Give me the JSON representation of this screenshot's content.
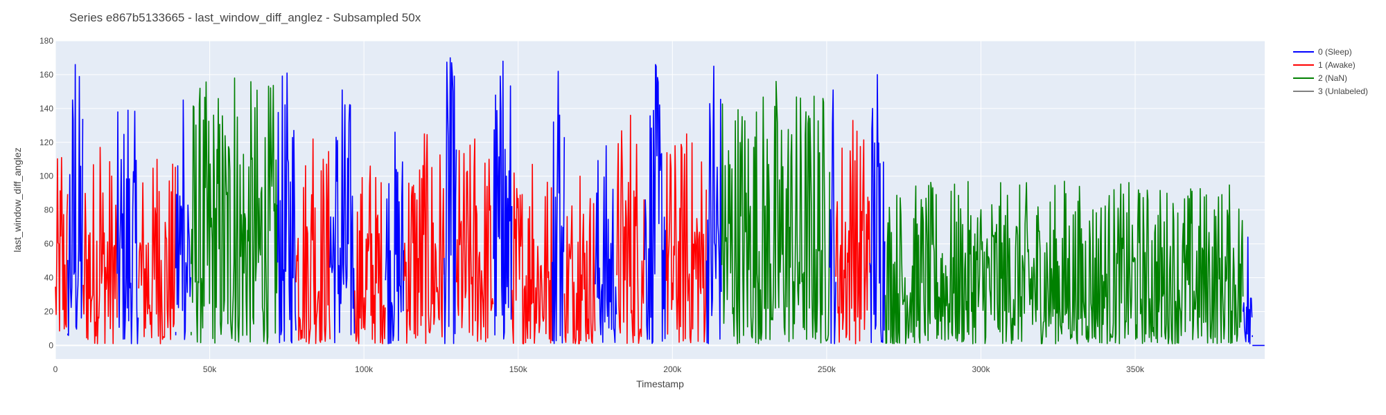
{
  "chart_data": {
    "type": "line",
    "title": "Series e867b5133665 - last_window_diff_anglez - Subsampled 50x",
    "xlabel": "Timestamp",
    "ylabel": "last_window_diff_anglez",
    "xlim": [
      0,
      392000
    ],
    "ylim": [
      -8,
      180
    ],
    "x_ticks": [
      0,
      50000,
      100000,
      150000,
      200000,
      250000,
      300000,
      350000
    ],
    "x_tick_labels": [
      "0",
      "50k",
      "100k",
      "150k",
      "200k",
      "250k",
      "300k",
      "350k"
    ],
    "y_ticks": [
      0,
      20,
      40,
      60,
      80,
      100,
      120,
      140,
      160,
      180
    ],
    "y_tick_labels": [
      "0",
      "20",
      "40",
      "60",
      "80",
      "100",
      "120",
      "140",
      "160",
      "180"
    ],
    "grid": true,
    "legend_position": "top-right",
    "series": [
      {
        "name": "0 (Sleep)",
        "color": "#0000ff"
      },
      {
        "name": "1 (Awake)",
        "color": "#ff0000"
      },
      {
        "name": "2 (NaN)",
        "color": "#008000"
      },
      {
        "name": "3 (Unlabeled)",
        "color": "#808080"
      }
    ],
    "segments": [
      {
        "series": 1,
        "x0": 0,
        "x1": 4000,
        "min": 2,
        "max": 111
      },
      {
        "series": 0,
        "x0": 4000,
        "x1": 9000,
        "min": 1,
        "max": 166
      },
      {
        "series": 1,
        "x0": 9000,
        "x1": 20000,
        "min": 1,
        "max": 117
      },
      {
        "series": 0,
        "x0": 20000,
        "x1": 27000,
        "min": 1,
        "max": 139
      },
      {
        "series": 1,
        "x0": 27000,
        "x1": 39000,
        "min": 1,
        "max": 110
      },
      {
        "series": 0,
        "x0": 39000,
        "x1": 44000,
        "min": 3,
        "max": 145
      },
      {
        "series": 2,
        "x0": 44000,
        "x1": 72000,
        "min": 1,
        "max": 158
      },
      {
        "series": 0,
        "x0": 72000,
        "x1": 78000,
        "min": 1,
        "max": 161
      },
      {
        "series": 1,
        "x0": 78000,
        "x1": 89000,
        "min": 1,
        "max": 122
      },
      {
        "series": 0,
        "x0": 89000,
        "x1": 97000,
        "min": 1,
        "max": 151
      },
      {
        "series": 1,
        "x0": 97000,
        "x1": 107000,
        "min": 1,
        "max": 106
      },
      {
        "series": 0,
        "x0": 107000,
        "x1": 113000,
        "min": 1,
        "max": 126
      },
      {
        "series": 1,
        "x0": 113000,
        "x1": 126000,
        "min": 1,
        "max": 125
      },
      {
        "series": 0,
        "x0": 126000,
        "x1": 130000,
        "min": 1,
        "max": 170
      },
      {
        "series": 1,
        "x0": 130000,
        "x1": 142000,
        "min": 1,
        "max": 122
      },
      {
        "series": 0,
        "x0": 142000,
        "x1": 148000,
        "min": 1,
        "max": 168
      },
      {
        "series": 1,
        "x0": 148000,
        "x1": 161000,
        "min": 1,
        "max": 107
      },
      {
        "series": 0,
        "x0": 161000,
        "x1": 165000,
        "min": 1,
        "max": 162
      },
      {
        "series": 1,
        "x0": 165000,
        "x1": 175000,
        "min": 1,
        "max": 100
      },
      {
        "series": 0,
        "x0": 175000,
        "x1": 182000,
        "min": 1,
        "max": 118
      },
      {
        "series": 1,
        "x0": 182000,
        "x1": 191000,
        "min": 1,
        "max": 136
      },
      {
        "series": 0,
        "x0": 191000,
        "x1": 198000,
        "min": 1,
        "max": 166
      },
      {
        "series": 1,
        "x0": 198000,
        "x1": 211000,
        "min": 1,
        "max": 125
      },
      {
        "series": 0,
        "x0": 211000,
        "x1": 216000,
        "min": 1,
        "max": 165
      },
      {
        "series": 2,
        "x0": 216000,
        "x1": 251000,
        "min": 1,
        "max": 156
      },
      {
        "series": 0,
        "x0": 251000,
        "x1": 253000,
        "min": 1,
        "max": 151
      },
      {
        "series": 1,
        "x0": 253000,
        "x1": 264000,
        "min": 1,
        "max": 133
      },
      {
        "series": 0,
        "x0": 264000,
        "x1": 269000,
        "min": 1,
        "max": 160
      },
      {
        "series": 2,
        "x0": 269000,
        "x1": 385000,
        "min": 1,
        "max": 97
      },
      {
        "series": 0,
        "x0": 385000,
        "x1": 388000,
        "min": 1,
        "max": 64
      },
      {
        "series": 0,
        "x0": 388000,
        "x1": 392000,
        "min": 0,
        "max": 0
      }
    ]
  }
}
